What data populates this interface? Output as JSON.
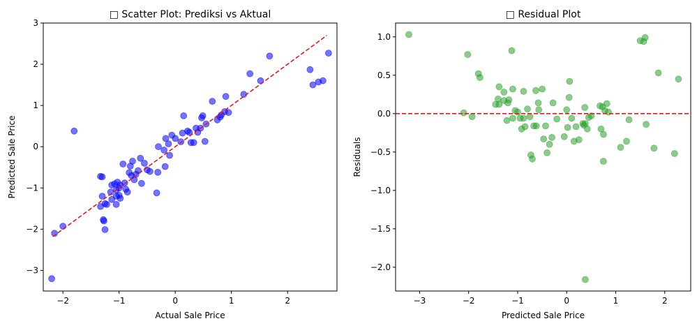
{
  "chart_data": [
    {
      "type": "scatter",
      "title": "□ Scatter Plot: Prediksi vs Aktual",
      "xlabel": "Actual Sale Price",
      "ylabel": "Predicted Sale Price",
      "xlim": [
        -2.35,
        2.88
      ],
      "ylim": [
        -3.5,
        3.0
      ],
      "xticks": [
        -2,
        -1,
        0,
        1,
        2
      ],
      "yticks": [
        -3,
        -2,
        -1,
        0,
        1,
        2,
        3
      ],
      "grid": false,
      "point_color": "#0000ff",
      "line_color": "#e41a1c",
      "reference_line": {
        "style": "dashed",
        "x": [
          -2.18,
          2.7
        ],
        "y": [
          -2.18,
          2.7
        ]
      },
      "points": [
        [
          -2.2,
          -3.2
        ],
        [
          -2.15,
          -2.1
        ],
        [
          -2.0,
          -1.93
        ],
        [
          -1.8,
          0.38
        ],
        [
          -1.33,
          -0.72
        ],
        [
          -1.3,
          -0.73
        ],
        [
          -1.33,
          -1.45
        ],
        [
          -1.3,
          -1.2
        ],
        [
          -1.28,
          -1.77
        ],
        [
          -1.27,
          -1.8
        ],
        [
          -1.25,
          -2.01
        ],
        [
          -1.22,
          -1.4
        ],
        [
          -1.25,
          -1.38
        ],
        [
          -1.15,
          -1.1
        ],
        [
          -1.13,
          -1.28
        ],
        [
          -1.13,
          -0.93
        ],
        [
          -1.08,
          -0.9
        ],
        [
          -1.05,
          -1.4
        ],
        [
          -1.05,
          -1.2
        ],
        [
          -1.05,
          -1.05
        ],
        [
          -1.03,
          -0.86
        ],
        [
          -1.0,
          -1.0
        ],
        [
          -1.0,
          -1.18
        ],
        [
          -0.98,
          -1.25
        ],
        [
          -0.98,
          -0.93
        ],
        [
          -0.93,
          -0.42
        ],
        [
          -0.9,
          -0.88
        ],
        [
          -0.88,
          -1.03
        ],
        [
          -0.85,
          -1.1
        ],
        [
          -0.82,
          -0.63
        ],
        [
          -0.8,
          -0.47
        ],
        [
          -0.78,
          -0.7
        ],
        [
          -0.76,
          -0.35
        ],
        [
          -0.73,
          -0.8
        ],
        [
          -0.7,
          -0.67
        ],
        [
          -0.66,
          -0.58
        ],
        [
          -0.62,
          -0.28
        ],
        [
          -0.6,
          -0.89
        ],
        [
          -0.55,
          -0.4
        ],
        [
          -0.5,
          -0.56
        ],
        [
          -0.45,
          -0.6
        ],
        [
          -0.33,
          -1.12
        ],
        [
          -0.31,
          -0.62
        ],
        [
          -0.3,
          0.0
        ],
        [
          -0.2,
          -0.08
        ],
        [
          -0.18,
          -0.48
        ],
        [
          -0.17,
          0.2
        ],
        [
          -0.12,
          0.07
        ],
        [
          -0.1,
          -0.21
        ],
        [
          -0.06,
          0.28
        ],
        [
          0.0,
          0.2
        ],
        [
          0.1,
          0.12
        ],
        [
          0.13,
          0.33
        ],
        [
          0.15,
          0.75
        ],
        [
          0.22,
          0.38
        ],
        [
          0.25,
          0.35
        ],
        [
          0.28,
          0.1
        ],
        [
          0.33,
          0.1
        ],
        [
          0.37,
          0.45
        ],
        [
          0.4,
          0.35
        ],
        [
          0.45,
          0.45
        ],
        [
          0.47,
          0.7
        ],
        [
          0.49,
          0.75
        ],
        [
          0.53,
          0.13
        ],
        [
          0.55,
          0.55
        ],
        [
          0.66,
          1.1
        ],
        [
          0.75,
          0.65
        ],
        [
          0.8,
          0.72
        ],
        [
          0.82,
          0.77
        ],
        [
          0.88,
          0.85
        ],
        [
          0.9,
          1.22
        ],
        [
          0.95,
          0.83
        ],
        [
          1.22,
          1.27
        ],
        [
          1.33,
          1.77
        ],
        [
          1.52,
          1.6
        ],
        [
          1.68,
          2.2
        ],
        [
          2.4,
          1.87
        ],
        [
          2.45,
          1.5
        ],
        [
          2.55,
          1.57
        ],
        [
          2.63,
          1.6
        ],
        [
          2.73,
          2.27
        ]
      ]
    },
    {
      "type": "scatter",
      "title": "□ Residual Plot",
      "xlabel": "Predicted Sale Price",
      "ylabel": "Residuals",
      "xlim": [
        -3.49,
        2.53
      ],
      "ylim": [
        -2.31,
        1.18
      ],
      "xticks": [
        -3,
        -2,
        -1,
        0,
        1,
        2
      ],
      "yticks": [
        -2.0,
        -1.5,
        -1.0,
        -0.5,
        0.0,
        0.5,
        1.0
      ],
      "grid": false,
      "point_color": "#2ca02c",
      "line_color": "#e41a1c",
      "reference_line": {
        "style": "dashed",
        "y": 0
      },
      "points": [
        [
          -3.22,
          1.03
        ],
        [
          -2.1,
          0.01
        ],
        [
          -2.02,
          0.77
        ],
        [
          -1.93,
          -0.04
        ],
        [
          -1.8,
          0.52
        ],
        [
          -1.77,
          0.47
        ],
        [
          -1.45,
          0.12
        ],
        [
          -1.4,
          0.19
        ],
        [
          -1.38,
          0.35
        ],
        [
          -1.38,
          0.12
        ],
        [
          -1.28,
          0.28
        ],
        [
          -1.28,
          0.17
        ],
        [
          -1.22,
          -0.09
        ],
        [
          -1.2,
          0.14
        ],
        [
          -1.18,
          0.18
        ],
        [
          -1.12,
          0.82
        ],
        [
          -1.1,
          0.32
        ],
        [
          -1.1,
          -0.06
        ],
        [
          -1.05,
          0.04
        ],
        [
          -1.0,
          0.02
        ],
        [
          -0.95,
          -0.06
        ],
        [
          -0.92,
          -0.2
        ],
        [
          -0.88,
          0.29
        ],
        [
          -0.88,
          -0.06
        ],
        [
          -0.85,
          -0.17
        ],
        [
          -0.8,
          0.06
        ],
        [
          -0.75,
          -0.04
        ],
        [
          -0.73,
          -0.54
        ],
        [
          -0.7,
          -0.59
        ],
        [
          -0.67,
          -0.16
        ],
        [
          -0.63,
          0.3
        ],
        [
          -0.62,
          -0.16
        ],
        [
          -0.58,
          0.14
        ],
        [
          -0.57,
          0.05
        ],
        [
          -0.5,
          0.32
        ],
        [
          -0.47,
          -0.33
        ],
        [
          -0.43,
          -0.16
        ],
        [
          -0.4,
          -0.51
        ],
        [
          -0.35,
          -0.4
        ],
        [
          -0.3,
          -0.31
        ],
        [
          -0.28,
          0.14
        ],
        [
          -0.2,
          -0.07
        ],
        [
          -0.05,
          -0.3
        ],
        [
          0.0,
          0.05
        ],
        [
          0.02,
          -0.18
        ],
        [
          0.05,
          0.21
        ],
        [
          0.06,
          0.42
        ],
        [
          0.1,
          -0.06
        ],
        [
          0.15,
          -0.36
        ],
        [
          0.19,
          -0.17
        ],
        [
          0.25,
          -0.34
        ],
        [
          0.33,
          -0.13
        ],
        [
          0.35,
          -0.15
        ],
        [
          0.37,
          0.08
        ],
        [
          0.38,
          -0.13
        ],
        [
          0.38,
          -2.16
        ],
        [
          0.42,
          -0.2
        ],
        [
          0.45,
          -0.05
        ],
        [
          0.5,
          -0.03
        ],
        [
          0.68,
          0.1
        ],
        [
          0.7,
          -0.2
        ],
        [
          0.73,
          0.09
        ],
        [
          0.75,
          -0.27
        ],
        [
          0.75,
          -0.62
        ],
        [
          0.78,
          0.04
        ],
        [
          0.82,
          0.13
        ],
        [
          0.85,
          0.02
        ],
        [
          1.1,
          -0.44
        ],
        [
          1.22,
          -0.36
        ],
        [
          1.27,
          -0.08
        ],
        [
          1.5,
          0.95
        ],
        [
          1.57,
          0.94
        ],
        [
          1.6,
          0.99
        ],
        [
          1.62,
          -0.14
        ],
        [
          1.78,
          -0.45
        ],
        [
          1.87,
          0.53
        ],
        [
          2.2,
          -0.52
        ],
        [
          2.28,
          0.45
        ]
      ]
    }
  ]
}
